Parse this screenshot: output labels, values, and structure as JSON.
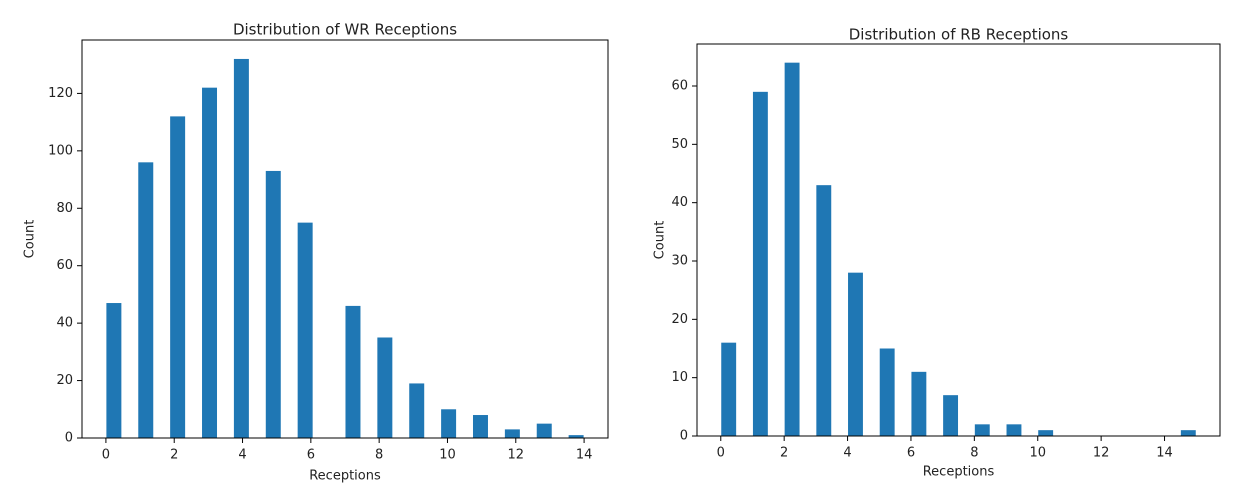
{
  "chart_data": [
    {
      "type": "histogram",
      "title": "Distribution of WR Receptions",
      "x_label": "Receptions",
      "y_label": "Count",
      "color": "#1f77b4",
      "bins": [
        0,
        0.4667,
        0.9333,
        1.4,
        1.8667,
        2.3333,
        2.8,
        3.2667,
        3.7333,
        4.2,
        4.6667,
        5.1333,
        5.6,
        6.0667,
        6.5333,
        7,
        7.4667,
        7.9333,
        8.4,
        8.8667,
        9.3333,
        9.8,
        10.2667,
        10.7333,
        11.2,
        11.6667,
        12.1333,
        12.6,
        13.0667,
        13.5333,
        14
      ],
      "counts": [
        47,
        0,
        96,
        0,
        112,
        0,
        122,
        0,
        132,
        0,
        93,
        0,
        75,
        0,
        0,
        46,
        0,
        35,
        0,
        19,
        0,
        10,
        0,
        8,
        0,
        3,
        0,
        5,
        0,
        1
      ],
      "xlim": [
        -0.7,
        14.7
      ],
      "xticks": [
        0,
        2,
        4,
        6,
        8,
        10,
        12,
        14
      ],
      "ylim": [
        0,
        138.6
      ],
      "yticks": [
        0,
        20,
        40,
        60,
        80,
        100,
        120
      ]
    },
    {
      "type": "histogram",
      "title": "Distribution of RB Receptions",
      "x_label": "Receptions",
      "y_label": "Count",
      "color": "#1f77b4",
      "bins": [
        0,
        0.5,
        1,
        1.5,
        2,
        2.5,
        3,
        3.5,
        4,
        4.5,
        5,
        5.5,
        6,
        6.5,
        7,
        7.5,
        8,
        8.5,
        9,
        9.5,
        10,
        10.5,
        11,
        11.5,
        12,
        12.5,
        13,
        13.5,
        14,
        14.5,
        15
      ],
      "counts": [
        16,
        0,
        59,
        0,
        64,
        0,
        43,
        0,
        28,
        0,
        15,
        0,
        11,
        0,
        7,
        0,
        2,
        0,
        2,
        0,
        1,
        0,
        0,
        0,
        0,
        0,
        0,
        0,
        0,
        1
      ],
      "xlim": [
        -0.75,
        15.75
      ],
      "xticks": [
        0,
        2,
        4,
        6,
        8,
        10,
        12,
        14
      ],
      "ylim": [
        0,
        67.2
      ],
      "yticks": [
        0,
        10,
        20,
        30,
        40,
        50,
        60
      ]
    }
  ]
}
